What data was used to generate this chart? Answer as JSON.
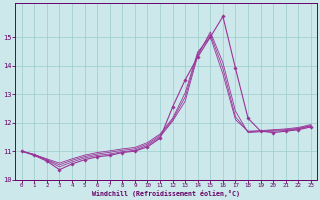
{
  "xlabel": "Windchill (Refroidissement éolien,°C)",
  "bg_color": "#cce8ea",
  "line_color": "#993399",
  "grid_color": "#99cccc",
  "xlim": [
    -0.5,
    23.5
  ],
  "ylim": [
    10,
    16.2
  ],
  "yticks": [
    10,
    11,
    12,
    13,
    14,
    15
  ],
  "xticks": [
    0,
    1,
    2,
    3,
    4,
    5,
    6,
    7,
    8,
    9,
    10,
    11,
    12,
    13,
    14,
    15,
    16,
    17,
    18,
    19,
    20,
    21,
    22,
    23
  ],
  "series": [
    [
      11.0,
      10.85,
      10.65,
      10.35,
      10.55,
      10.7,
      10.8,
      10.85,
      10.95,
      11.0,
      11.15,
      11.45,
      12.55,
      13.5,
      14.3,
      15.0,
      15.72,
      13.9,
      12.15,
      11.7,
      11.65,
      11.7,
      11.75,
      11.85
    ],
    [
      11.0,
      10.88,
      10.68,
      10.45,
      10.62,
      10.76,
      10.85,
      10.9,
      10.98,
      11.03,
      11.2,
      11.5,
      12.05,
      12.75,
      14.35,
      15.18,
      14.1,
      12.4,
      11.65,
      11.68,
      11.7,
      11.72,
      11.78,
      11.88
    ],
    [
      11.0,
      10.88,
      10.7,
      10.52,
      10.68,
      10.81,
      10.9,
      10.96,
      11.03,
      11.08,
      11.25,
      11.55,
      12.1,
      12.9,
      14.42,
      15.1,
      13.9,
      12.2,
      11.68,
      11.7,
      11.73,
      11.75,
      11.8,
      11.9
    ],
    [
      11.0,
      10.88,
      10.73,
      10.58,
      10.73,
      10.86,
      10.95,
      11.01,
      11.08,
      11.13,
      11.3,
      11.6,
      12.15,
      13.05,
      14.48,
      15.0,
      13.7,
      12.1,
      11.7,
      11.72,
      11.75,
      11.78,
      11.83,
      11.93
    ]
  ],
  "markersize": 1.8,
  "linewidth": 0.8,
  "thin_linewidth": 0.6
}
